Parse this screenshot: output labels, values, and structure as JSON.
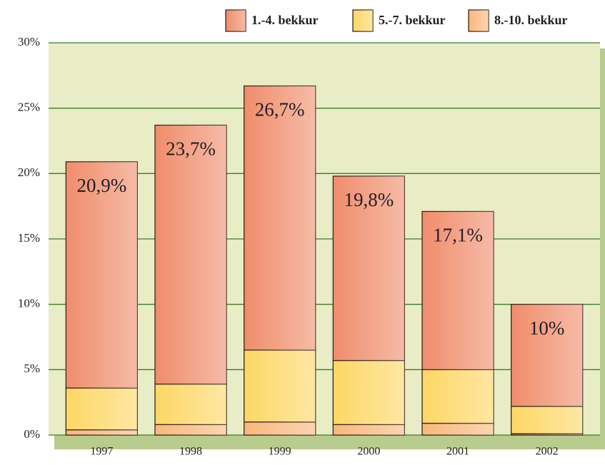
{
  "chart_data": {
    "type": "stacked_bar",
    "categories": [
      "1997",
      "1998",
      "1999",
      "2000",
      "2001",
      "2002"
    ],
    "series": [
      {
        "name": "1.-4. bekkur",
        "color": "#f08d6c",
        "values": [
          17.3,
          19.8,
          20.2,
          14.1,
          12.1,
          7.8
        ]
      },
      {
        "name": "5.-7. bekkur",
        "color": "#fdd765",
        "values": [
          3.2,
          3.1,
          5.5,
          4.9,
          4.1,
          2.1
        ]
      },
      {
        "name": "8.-10. bekkur",
        "color": "#f9b87c",
        "values": [
          0.4,
          0.8,
          1.0,
          0.8,
          0.9,
          0.1
        ]
      }
    ],
    "totals": [
      20.9,
      23.7,
      26.7,
      19.8,
      17.1,
      10
    ],
    "total_labels": [
      "20,9%",
      "23,7%",
      "26,7%",
      "19,8%",
      "17,1%",
      "10%"
    ],
    "ylim": [
      0,
      30
    ],
    "yticks": [
      {
        "value": 0,
        "label": "0%"
      },
      {
        "value": 5,
        "label": "5%"
      },
      {
        "value": 10,
        "label": "10%"
      },
      {
        "value": 15,
        "label": "15%"
      },
      {
        "value": 20,
        "label": "20%"
      },
      {
        "value": 25,
        "label": "25%"
      },
      {
        "value": 30,
        "label": "30%"
      }
    ],
    "grid": true,
    "legend": "top-right"
  }
}
